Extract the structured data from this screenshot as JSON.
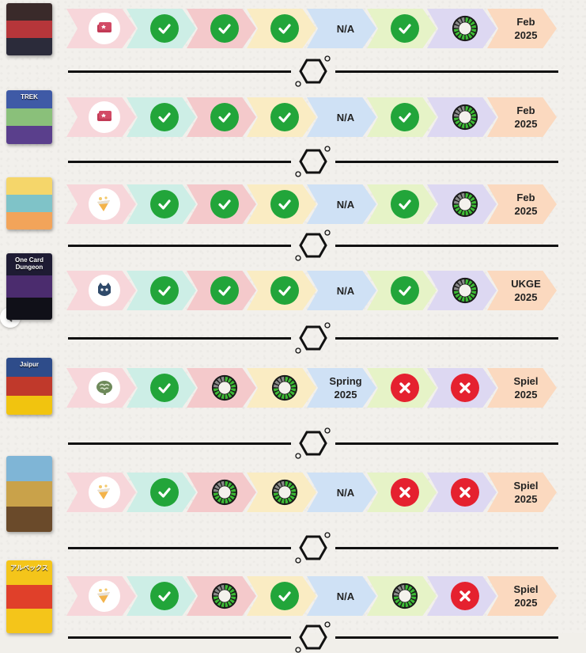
{
  "rows": [
    {
      "game_index": 1,
      "type_icon": "deck-icon",
      "cells": [
        "check",
        "check",
        "check",
        "N/A",
        "check",
        "progress-ring",
        "Feb\n2025"
      ]
    },
    {
      "game_index": 2,
      "type_icon": "deck-icon",
      "cells": [
        "check",
        "check",
        "check",
        "N/A",
        "check",
        "progress-ring",
        "Feb\n2025"
      ]
    },
    {
      "game_index": 3,
      "type_icon": "cake-slice-icon",
      "cells": [
        "check",
        "check",
        "check",
        "N/A",
        "check",
        "progress-ring",
        "Feb\n2025"
      ]
    },
    {
      "game_index": 4,
      "type_icon": "cat-icon",
      "cells": [
        "check",
        "check",
        "check",
        "N/A",
        "check",
        "progress-ring",
        "UKGE\n2025"
      ]
    },
    {
      "game_index": 5,
      "type_icon": "brain-icon",
      "cells": [
        "check",
        "progress-ring",
        "progress-ring",
        "Spring\n2025",
        "cross",
        "cross",
        "Spiel\n2025"
      ]
    },
    {
      "game_index": 6,
      "type_icon": "cake-slice-icon",
      "cells": [
        "check",
        "progress-ring",
        "progress-ring",
        "N/A",
        "cross",
        "cross",
        "Spiel\n2025"
      ]
    },
    {
      "game_index": 7,
      "type_icon": "cake-slice-icon",
      "cells": [
        "check",
        "progress-ring",
        "check",
        "N/A",
        "progress-ring",
        "cross",
        "Spiel\n2025"
      ]
    }
  ],
  "covers": [
    {
      "title": "",
      "colors": [
        "#3a2a2a",
        "#b6363a",
        "#2b2b3a"
      ]
    },
    {
      "title": "TREK",
      "colors": [
        "#3f5aa6",
        "#8ac07a",
        "#5a3f8c"
      ]
    },
    {
      "title": "",
      "colors": [
        "#f5d66a",
        "#7fc3c8",
        "#f2a45a"
      ]
    },
    {
      "title": "One Card Dungeon",
      "colors": [
        "#1e1b33",
        "#4b2c6e",
        "#101018"
      ]
    },
    {
      "title": "Jaipur",
      "colors": [
        "#2e4c8a",
        "#c0392b",
        "#f1c40f"
      ]
    },
    {
      "title": "",
      "colors": [
        "#7fb5d6",
        "#c9a24a",
        "#6a4a2a"
      ]
    },
    {
      "title": "アルペックス",
      "colors": [
        "#f4c51a",
        "#e0402a",
        "#f4c51a"
      ]
    }
  ],
  "colors": {
    "check": "#22a53a",
    "cross": "#e5212f",
    "ring_green": "#3dbb35",
    "ring_dark": "#1a1a1a"
  }
}
